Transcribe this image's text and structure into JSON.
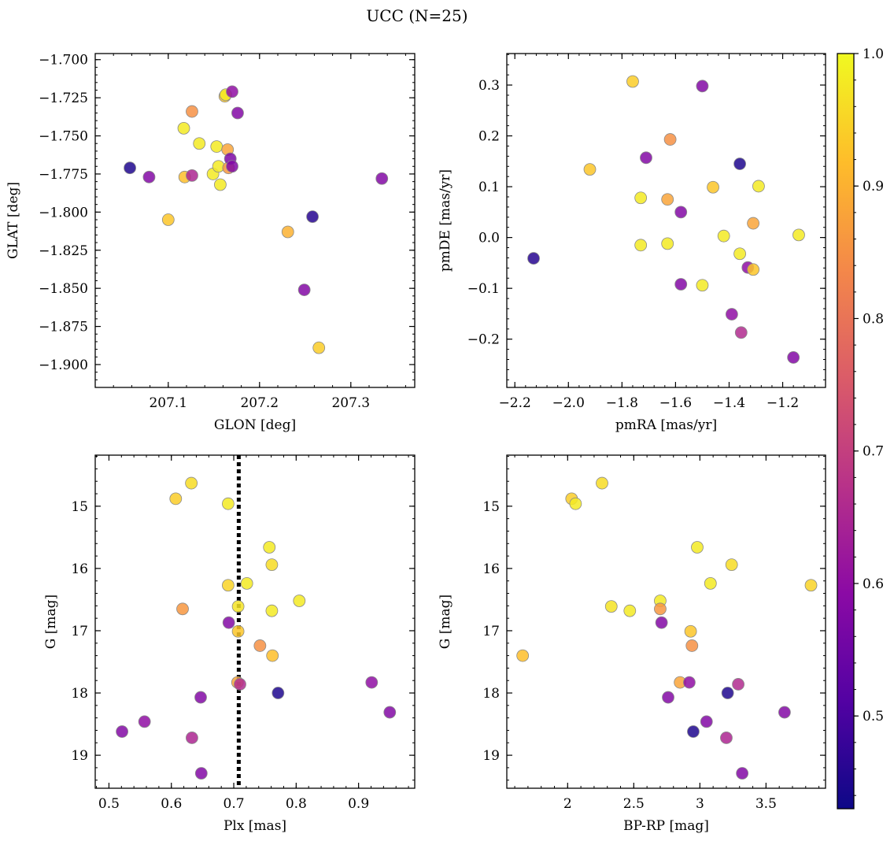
{
  "figure": {
    "title": "UCC (N=25)"
  },
  "chart_data": [
    {
      "type": "scatter",
      "panel": "position",
      "xlabel": "GLON [deg]",
      "ylabel": "GLAT [deg]",
      "xlim": [
        207.02,
        207.37
      ],
      "ylim": [
        -1.915,
        -1.696
      ],
      "xticks": [
        207.1,
        207.2,
        207.3
      ],
      "yticks": [
        -1.9,
        -1.875,
        -1.85,
        -1.825,
        -1.8,
        -1.775,
        -1.75,
        -1.725,
        -1.7
      ],
      "points": [
        {
          "x": 207.058,
          "y": -1.771,
          "c": 0.45
        },
        {
          "x": 207.079,
          "y": -1.777,
          "c": 0.58
        },
        {
          "x": 207.1,
          "y": -1.805,
          "c": 0.93
        },
        {
          "x": 207.117,
          "y": -1.745,
          "c": 0.98
        },
        {
          "x": 207.118,
          "y": -1.777,
          "c": 0.92
        },
        {
          "x": 207.126,
          "y": -1.734,
          "c": 0.85
        },
        {
          "x": 207.126,
          "y": -1.776,
          "c": 0.65
        },
        {
          "x": 207.134,
          "y": -1.755,
          "c": 0.98
        },
        {
          "x": 207.149,
          "y": -1.775,
          "c": 0.98
        },
        {
          "x": 207.153,
          "y": -1.757,
          "c": 0.98
        },
        {
          "x": 207.155,
          "y": -1.77,
          "c": 0.98
        },
        {
          "x": 207.157,
          "y": -1.782,
          "c": 0.98
        },
        {
          "x": 207.162,
          "y": -1.724,
          "c": 0.93
        },
        {
          "x": 207.163,
          "y": -1.723,
          "c": 0.98
        },
        {
          "x": 207.165,
          "y": -1.759,
          "c": 0.88
        },
        {
          "x": 207.166,
          "y": -1.771,
          "c": 0.86
        },
        {
          "x": 207.168,
          "y": -1.765,
          "c": 0.57
        },
        {
          "x": 207.17,
          "y": -1.721,
          "c": 0.6
        },
        {
          "x": 207.17,
          "y": -1.77,
          "c": 0.58
        },
        {
          "x": 207.176,
          "y": -1.735,
          "c": 0.58
        },
        {
          "x": 207.231,
          "y": -1.813,
          "c": 0.9
        },
        {
          "x": 207.249,
          "y": -1.851,
          "c": 0.58
        },
        {
          "x": 207.258,
          "y": -1.803,
          "c": 0.46
        },
        {
          "x": 207.265,
          "y": -1.889,
          "c": 0.94
        },
        {
          "x": 207.334,
          "y": -1.778,
          "c": 0.58
        }
      ]
    },
    {
      "type": "scatter",
      "panel": "proper-motion",
      "xlabel": "pmRA [mas/yr]",
      "ylabel": "pmDE [mas/yr]",
      "xlim": [
        -2.23,
        -1.04
      ],
      "ylim": [
        -0.295,
        0.362
      ],
      "xticks": [
        -2.2,
        -2.0,
        -1.8,
        -1.6,
        -1.4,
        -1.2
      ],
      "xticklabels": [
        "−2.2",
        "−2.0",
        "−1.8",
        "−1.6",
        "−1.4",
        "−1.2"
      ],
      "yticks": [
        -0.2,
        -0.1,
        0.0,
        0.1,
        0.2,
        0.3
      ],
      "yticklabels": [
        "−0.2",
        "−0.1",
        "0.0",
        "0.1",
        "0.2",
        "0.3"
      ],
      "points": [
        {
          "x": -2.13,
          "y": -0.041,
          "c": 0.46
        },
        {
          "x": -1.92,
          "y": 0.134,
          "c": 0.93
        },
        {
          "x": -1.76,
          "y": 0.307,
          "c": 0.94
        },
        {
          "x": -1.73,
          "y": 0.078,
          "c": 0.98
        },
        {
          "x": -1.73,
          "y": -0.015,
          "c": 0.98
        },
        {
          "x": -1.71,
          "y": 0.157,
          "c": 0.58
        },
        {
          "x": -1.63,
          "y": 0.075,
          "c": 0.88
        },
        {
          "x": -1.63,
          "y": -0.012,
          "c": 0.98
        },
        {
          "x": -1.62,
          "y": 0.193,
          "c": 0.85
        },
        {
          "x": -1.58,
          "y": 0.05,
          "c": 0.58
        },
        {
          "x": -1.58,
          "y": -0.092,
          "c": 0.58
        },
        {
          "x": -1.5,
          "y": 0.298,
          "c": 0.58
        },
        {
          "x": -1.5,
          "y": -0.094,
          "c": 0.98
        },
        {
          "x": -1.46,
          "y": 0.099,
          "c": 0.93
        },
        {
          "x": -1.42,
          "y": 0.003,
          "c": 0.98
        },
        {
          "x": -1.39,
          "y": -0.151,
          "c": 0.6
        },
        {
          "x": -1.36,
          "y": 0.145,
          "c": 0.45
        },
        {
          "x": -1.36,
          "y": -0.032,
          "c": 0.98
        },
        {
          "x": -1.355,
          "y": -0.187,
          "c": 0.66
        },
        {
          "x": -1.33,
          "y": -0.059,
          "c": 0.6
        },
        {
          "x": -1.31,
          "y": 0.028,
          "c": 0.88
        },
        {
          "x": -1.31,
          "y": -0.063,
          "c": 0.93
        },
        {
          "x": -1.29,
          "y": 0.101,
          "c": 0.98
        },
        {
          "x": -1.16,
          "y": -0.236,
          "c": 0.58
        },
        {
          "x": -1.14,
          "y": 0.005,
          "c": 0.98
        }
      ]
    },
    {
      "type": "scatter",
      "panel": "parallax",
      "xlabel": "Plx [mas]",
      "ylabel": "G [mag]",
      "xlim": [
        0.478,
        0.99
      ],
      "ylim": [
        19.53,
        14.18
      ],
      "xticks": [
        0.5,
        0.6,
        0.7,
        0.8,
        0.9
      ],
      "yticks": [
        15,
        16,
        17,
        18,
        19
      ],
      "vline": {
        "x": 0.708,
        "style": "dotted",
        "color": "#000000"
      },
      "points": [
        {
          "x": 0.521,
          "y": 18.62,
          "c": 0.58
        },
        {
          "x": 0.557,
          "y": 18.46,
          "c": 0.6
        },
        {
          "x": 0.607,
          "y": 14.88,
          "c": 0.94
        },
        {
          "x": 0.618,
          "y": 16.65,
          "c": 0.86
        },
        {
          "x": 0.632,
          "y": 14.63,
          "c": 0.96
        },
        {
          "x": 0.633,
          "y": 18.72,
          "c": 0.65
        },
        {
          "x": 0.647,
          "y": 18.07,
          "c": 0.58
        },
        {
          "x": 0.648,
          "y": 19.29,
          "c": 0.58
        },
        {
          "x": 0.691,
          "y": 14.96,
          "c": 0.98
        },
        {
          "x": 0.691,
          "y": 16.27,
          "c": 0.95
        },
        {
          "x": 0.692,
          "y": 16.87,
          "c": 0.58
        },
        {
          "x": 0.706,
          "y": 17.83,
          "c": 0.88
        },
        {
          "x": 0.707,
          "y": 16.61,
          "c": 0.97
        },
        {
          "x": 0.707,
          "y": 17.01,
          "c": 0.93
        },
        {
          "x": 0.71,
          "y": 17.86,
          "c": 0.66
        },
        {
          "x": 0.721,
          "y": 16.24,
          "c": 0.98
        },
        {
          "x": 0.742,
          "y": 17.24,
          "c": 0.85
        },
        {
          "x": 0.757,
          "y": 15.66,
          "c": 0.98
        },
        {
          "x": 0.761,
          "y": 15.94,
          "c": 0.96
        },
        {
          "x": 0.761,
          "y": 16.68,
          "c": 0.98
        },
        {
          "x": 0.762,
          "y": 17.4,
          "c": 0.92
        },
        {
          "x": 0.771,
          "y": 18.0,
          "c": 0.45
        },
        {
          "x": 0.805,
          "y": 16.52,
          "c": 0.98
        },
        {
          "x": 0.921,
          "y": 17.83,
          "c": 0.6
        },
        {
          "x": 0.95,
          "y": 18.31,
          "c": 0.58
        }
      ]
    },
    {
      "type": "scatter",
      "panel": "color-magnitude",
      "xlabel": "BP-RP [mag]",
      "ylabel": "G [mag]",
      "xlim": [
        1.54,
        3.95
      ],
      "ylim": [
        19.53,
        14.18
      ],
      "xticks": [
        2.0,
        2.5,
        3.0,
        3.5
      ],
      "yticks": [
        15,
        16,
        17,
        18,
        19
      ],
      "points": [
        {
          "x": 1.66,
          "y": 17.4,
          "c": 0.92
        },
        {
          "x": 2.03,
          "y": 14.88,
          "c": 0.94
        },
        {
          "x": 2.06,
          "y": 14.96,
          "c": 0.98
        },
        {
          "x": 2.26,
          "y": 14.63,
          "c": 0.96
        },
        {
          "x": 2.33,
          "y": 16.61,
          "c": 0.97
        },
        {
          "x": 2.47,
          "y": 16.68,
          "c": 0.98
        },
        {
          "x": 2.7,
          "y": 16.52,
          "c": 0.98
        },
        {
          "x": 2.7,
          "y": 16.65,
          "c": 0.86
        },
        {
          "x": 2.71,
          "y": 16.87,
          "c": 0.58
        },
        {
          "x": 2.76,
          "y": 18.07,
          "c": 0.58
        },
        {
          "x": 2.85,
          "y": 17.83,
          "c": 0.88
        },
        {
          "x": 2.92,
          "y": 17.83,
          "c": 0.6
        },
        {
          "x": 2.93,
          "y": 17.01,
          "c": 0.93
        },
        {
          "x": 2.94,
          "y": 17.24,
          "c": 0.85
        },
        {
          "x": 2.95,
          "y": 18.62,
          "c": 0.45
        },
        {
          "x": 2.98,
          "y": 15.66,
          "c": 0.98
        },
        {
          "x": 3.05,
          "y": 18.46,
          "c": 0.58
        },
        {
          "x": 3.08,
          "y": 16.24,
          "c": 0.98
        },
        {
          "x": 3.2,
          "y": 18.72,
          "c": 0.65
        },
        {
          "x": 3.21,
          "y": 18.0,
          "c": 0.45
        },
        {
          "x": 3.24,
          "y": 15.94,
          "c": 0.96
        },
        {
          "x": 3.29,
          "y": 17.86,
          "c": 0.66
        },
        {
          "x": 3.32,
          "y": 19.29,
          "c": 0.58
        },
        {
          "x": 3.64,
          "y": 18.31,
          "c": 0.58
        },
        {
          "x": 3.84,
          "y": 16.27,
          "c": 0.95
        }
      ]
    }
  ],
  "colorbar": {
    "colormap": "plasma",
    "min": 0.43,
    "max": 1.0,
    "ticks": [
      0.5,
      0.6,
      0.7,
      0.8,
      0.9,
      1.0
    ],
    "ticklabels": [
      "0.5",
      "0.6",
      "0.7",
      "0.8",
      "0.9",
      "1.0"
    ]
  },
  "style": {
    "marker_edge": "#8a8a8a",
    "marker_alpha": 0.85,
    "colormap_stops": [
      "#0d0887",
      "#5302a3",
      "#8b0aa5",
      "#b83289",
      "#db5c68",
      "#f48849",
      "#febd2a",
      "#f0f921"
    ]
  }
}
